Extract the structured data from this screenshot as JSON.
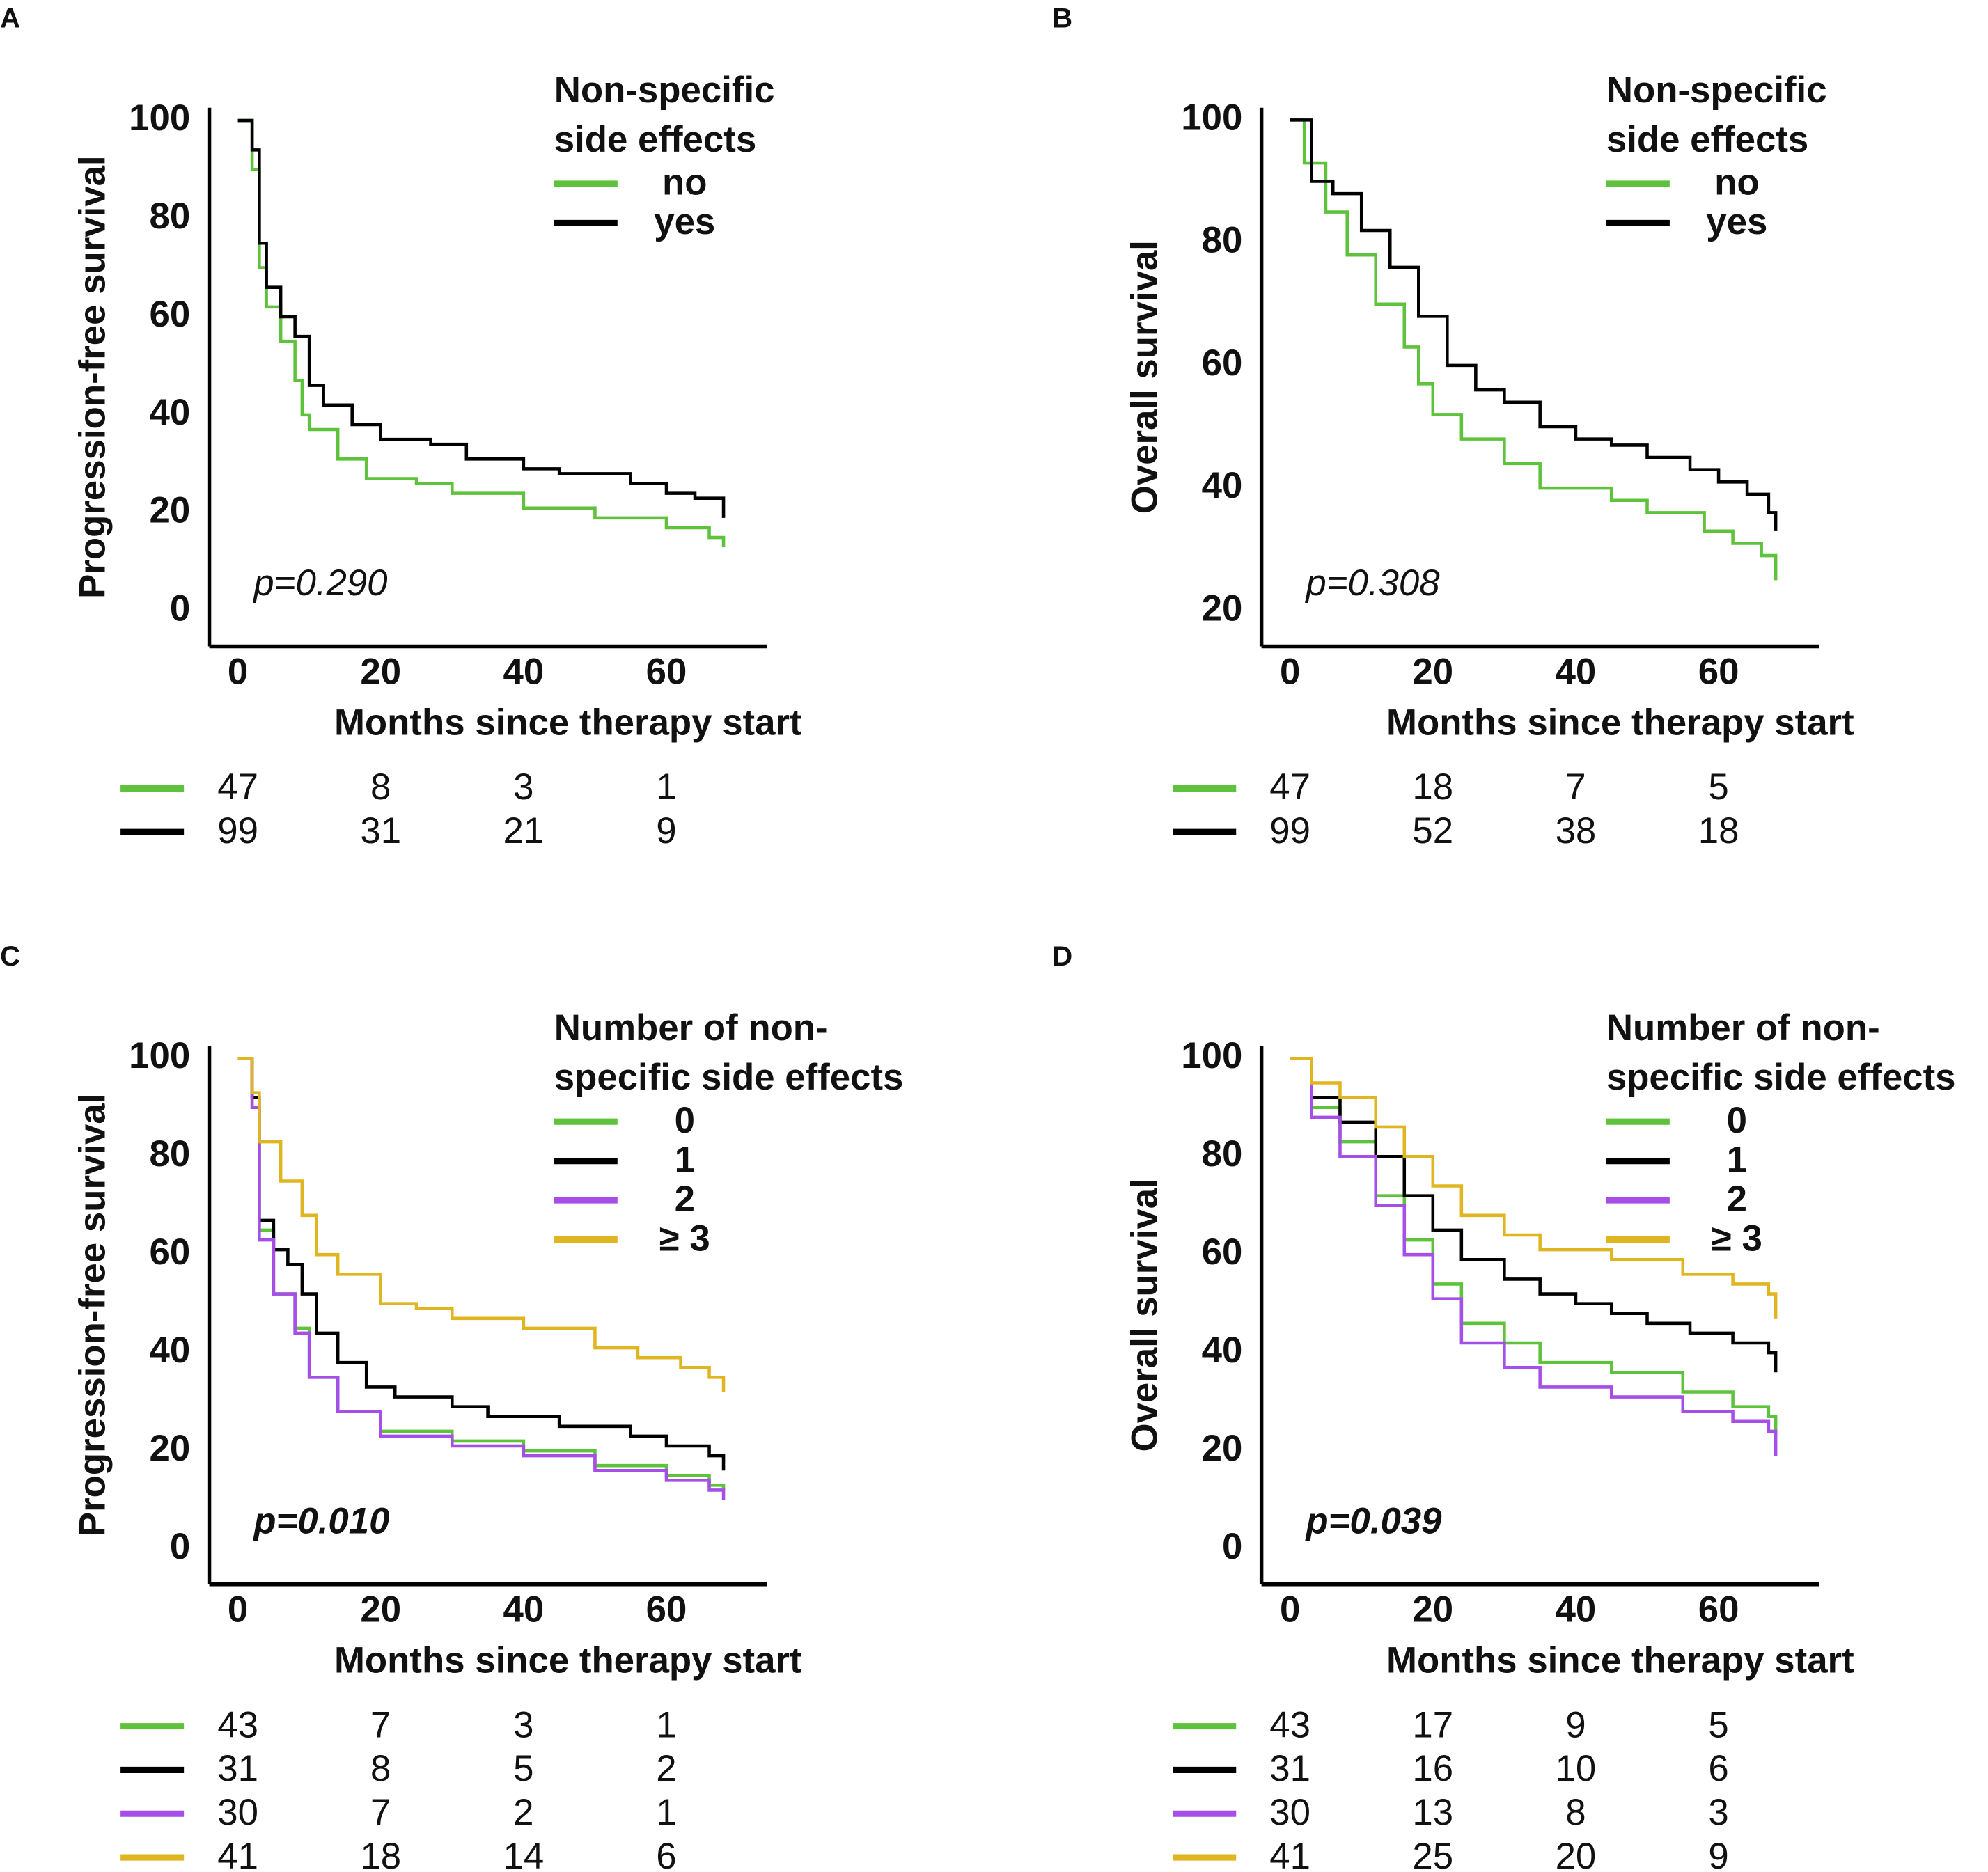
{
  "chart_data": [
    {
      "type": "step",
      "panel": "A",
      "ylabel": "Progression-free survival",
      "xlabel": "Months since therapy start",
      "legend_title": [
        "Non-specific",
        "side effects"
      ],
      "annotation": "p=0.290",
      "annotation_style": "italic",
      "xlim": [
        -4,
        74.1
      ],
      "ylim": [
        -7.2,
        102.6
      ],
      "xticks": [
        0,
        20,
        40,
        60
      ],
      "yticks": [
        0,
        20,
        40,
        60,
        80,
        100
      ],
      "series": [
        {
          "name": "no",
          "color": "#5fc23c",
          "x": [
            0,
            2,
            3,
            4,
            6,
            8,
            9,
            10,
            14,
            18,
            25,
            30,
            40,
            50,
            60,
            66,
            68
          ],
          "values": [
            100,
            90,
            70,
            62,
            55,
            47,
            40,
            37,
            31,
            27,
            26,
            24,
            21,
            19,
            17,
            15,
            13
          ]
        },
        {
          "name": "yes",
          "color": "#000000",
          "x": [
            0,
            2,
            3,
            4,
            6,
            8,
            10,
            12,
            16,
            20,
            27,
            32,
            40,
            45,
            55,
            60,
            64,
            68
          ],
          "values": [
            100,
            94,
            75,
            66,
            60,
            56,
            46,
            42,
            38,
            35,
            34,
            31,
            29,
            28,
            26,
            24,
            23,
            19
          ]
        }
      ],
      "risk_table": [
        {
          "color": "#5fc23c",
          "values": [
            47,
            8,
            3,
            1
          ]
        },
        {
          "color": "#000000",
          "values": [
            99,
            31,
            21,
            9
          ]
        }
      ]
    },
    {
      "type": "step",
      "panel": "B",
      "ylabel": "Overall survival",
      "xlabel": "Months since therapy start",
      "legend_title": [
        "Non-specific",
        "side effects"
      ],
      "annotation": "p=0.308",
      "annotation_style": "italic",
      "xlim": [
        -4,
        74.1
      ],
      "ylim": [
        14.2,
        102
      ],
      "xticks": [
        0,
        20,
        40,
        60
      ],
      "yticks": [
        20,
        40,
        60,
        80,
        100
      ],
      "series": [
        {
          "name": "no",
          "color": "#5fc23c",
          "x": [
            0,
            2,
            5,
            8,
            12,
            16,
            18,
            20,
            24,
            30,
            35,
            45,
            50,
            58,
            62,
            66,
            68
          ],
          "values": [
            100,
            93,
            85,
            78,
            70,
            63,
            57,
            52,
            48,
            44,
            40,
            38,
            36,
            33,
            31,
            29,
            25
          ]
        },
        {
          "name": "yes",
          "color": "#000000",
          "x": [
            0,
            3,
            6,
            10,
            14,
            18,
            22,
            26,
            30,
            35,
            40,
            45,
            50,
            56,
            60,
            64,
            67,
            68
          ],
          "values": [
            100,
            90,
            88,
            82,
            76,
            68,
            60,
            56,
            54,
            50,
            48,
            47,
            45,
            43,
            41,
            39,
            36,
            33
          ]
        }
      ],
      "risk_table": [
        {
          "color": "#5fc23c",
          "values": [
            47,
            18,
            7,
            5
          ]
        },
        {
          "color": "#000000",
          "values": [
            99,
            52,
            38,
            18
          ]
        }
      ]
    },
    {
      "type": "step",
      "panel": "C",
      "ylabel": "Progression-free survival",
      "xlabel": "Months since therapy start",
      "legend_title": [
        "Number of non-",
        "specific side effects"
      ],
      "annotation": "p=0.010",
      "annotation_style": "bold-italic",
      "xlim": [
        -4,
        74.1
      ],
      "ylim": [
        -7.2,
        102.6
      ],
      "xticks": [
        0,
        20,
        40,
        60
      ],
      "yticks": [
        0,
        20,
        40,
        60,
        80,
        100
      ],
      "series": [
        {
          "name": "0",
          "color": "#5fc23c",
          "x": [
            0,
            2,
            3,
            5,
            8,
            10,
            14,
            20,
            30,
            40,
            50,
            60,
            66,
            68
          ],
          "values": [
            100,
            90,
            65,
            52,
            45,
            35,
            28,
            24,
            22,
            20,
            17,
            15,
            13,
            12
          ]
        },
        {
          "name": "1",
          "color": "#000000",
          "x": [
            0,
            2,
            3,
            5,
            7,
            9,
            11,
            14,
            18,
            22,
            30,
            35,
            45,
            55,
            60,
            66,
            68
          ],
          "values": [
            100,
            92,
            67,
            61,
            58,
            52,
            44,
            38,
            33,
            31,
            29,
            27,
            25,
            23,
            21,
            19,
            16
          ]
        },
        {
          "name": "2",
          "color": "#a64fe8",
          "x": [
            0,
            2,
            3,
            5,
            8,
            10,
            14,
            20,
            30,
            40,
            50,
            60,
            66,
            68
          ],
          "values": [
            100,
            90,
            63,
            52,
            44,
            35,
            28,
            23,
            21,
            19,
            16,
            14,
            12,
            10
          ]
        },
        {
          "name": "≥ 3",
          "color": "#e0b522",
          "x": [
            0,
            2,
            3,
            6,
            9,
            11,
            14,
            20,
            25,
            30,
            40,
            50,
            56,
            62,
            66,
            68
          ],
          "values": [
            100,
            93,
            83,
            75,
            68,
            60,
            56,
            50,
            49,
            47,
            45,
            41,
            39,
            37,
            35,
            32
          ]
        }
      ],
      "risk_table": [
        {
          "color": "#5fc23c",
          "values": [
            43,
            7,
            3,
            1
          ]
        },
        {
          "color": "#000000",
          "values": [
            31,
            8,
            5,
            2
          ]
        },
        {
          "color": "#a64fe8",
          "values": [
            30,
            7,
            2,
            1
          ]
        },
        {
          "color": "#e0b522",
          "values": [
            41,
            18,
            14,
            6
          ]
        }
      ]
    },
    {
      "type": "step",
      "panel": "D",
      "ylabel": "Overall survival",
      "xlabel": "Months since therapy start",
      "legend_title": [
        "Number of non-",
        "specific side effects"
      ],
      "annotation": "p=0.039",
      "annotation_style": "bold-italic",
      "xlim": [
        -4,
        74.1
      ],
      "ylim": [
        -7.2,
        102.6
      ],
      "xticks": [
        0,
        20,
        40,
        60
      ],
      "yticks": [
        0,
        20,
        40,
        60,
        80,
        100
      ],
      "series": [
        {
          "name": "0",
          "color": "#5fc23c",
          "x": [
            0,
            3,
            7,
            12,
            16,
            20,
            24,
            30,
            35,
            45,
            55,
            62,
            67,
            68
          ],
          "values": [
            100,
            90,
            83,
            72,
            63,
            54,
            46,
            42,
            38,
            36,
            32,
            29,
            27,
            23
          ]
        },
        {
          "name": "1",
          "color": "#000000",
          "x": [
            0,
            3,
            7,
            12,
            16,
            20,
            24,
            30,
            35,
            40,
            45,
            50,
            56,
            62,
            67,
            68
          ],
          "values": [
            100,
            92,
            87,
            80,
            72,
            65,
            59,
            55,
            52,
            50,
            48,
            46,
            44,
            42,
            40,
            36
          ]
        },
        {
          "name": "2",
          "color": "#a64fe8",
          "x": [
            0,
            3,
            7,
            12,
            16,
            20,
            24,
            30,
            35,
            45,
            55,
            62,
            67,
            68
          ],
          "values": [
            100,
            88,
            80,
            70,
            60,
            51,
            42,
            37,
            33,
            31,
            28,
            26,
            24,
            19
          ]
        },
        {
          "name": "≥ 3",
          "color": "#e0b522",
          "x": [
            0,
            3,
            7,
            12,
            16,
            20,
            24,
            30,
            35,
            45,
            55,
            62,
            67,
            68
          ],
          "values": [
            100,
            95,
            92,
            86,
            80,
            74,
            68,
            64,
            61,
            59,
            56,
            54,
            52,
            47
          ]
        }
      ],
      "risk_table": [
        {
          "color": "#5fc23c",
          "values": [
            43,
            17,
            9,
            5
          ]
        },
        {
          "color": "#000000",
          "values": [
            31,
            16,
            10,
            6
          ]
        },
        {
          "color": "#a64fe8",
          "values": [
            30,
            13,
            8,
            3
          ]
        },
        {
          "color": "#e0b522",
          "values": [
            41,
            25,
            20,
            9
          ]
        }
      ]
    }
  ]
}
